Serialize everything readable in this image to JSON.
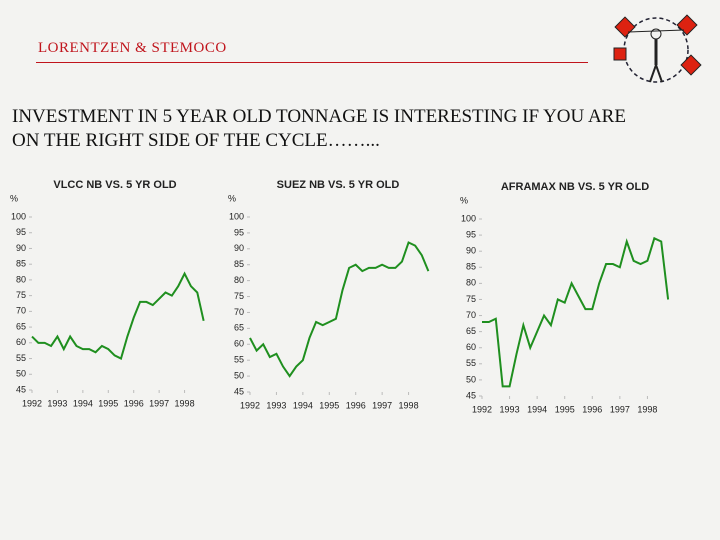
{
  "header": {
    "brand": "LORENTZEN & STEMOCO",
    "title_lines": [
      "INVESTMENT IN 5 YEAR OLD TONNAGE IS INTERESTING IF YOU ARE",
      "ON THE RIGHT SIDE OF THE CYCLE……..."
    ]
  },
  "chart_data": [
    {
      "type": "line",
      "title": "VLCC NB VS. 5 YR OLD",
      "y_label": "%",
      "color": "#1f8f1f",
      "x": [
        1992,
        1992.25,
        1992.5,
        1992.75,
        1993,
        1993.25,
        1993.5,
        1993.75,
        1994,
        1994.25,
        1994.5,
        1994.75,
        1995,
        1995.25,
        1995.5,
        1995.75,
        1996,
        1996.25,
        1996.5,
        1996.75,
        1997,
        1997.25,
        1997.5,
        1997.75,
        1998,
        1998.25,
        1998.5,
        1998.75
      ],
      "values": [
        62,
        60,
        60,
        59,
        62,
        58,
        62,
        59,
        58,
        58,
        57,
        59,
        58,
        56,
        55,
        62,
        68,
        73,
        73,
        72,
        74,
        76,
        75,
        78,
        82,
        78,
        76,
        67
      ],
      "xlim": [
        1992,
        1999
      ],
      "xticks": [
        1992,
        1993,
        1994,
        1995,
        1996,
        1997,
        1998
      ],
      "ylim": [
        45,
        100
      ],
      "yticks": [
        45,
        50,
        55,
        60,
        65,
        70,
        75,
        80,
        85,
        90,
        95,
        100
      ]
    },
    {
      "type": "line",
      "title": "SUEZ NB VS. 5 YR OLD",
      "y_label": "%",
      "color": "#1f8f1f",
      "x": [
        1992,
        1992.25,
        1992.5,
        1992.75,
        1993,
        1993.25,
        1993.5,
        1993.75,
        1994,
        1994.25,
        1994.5,
        1994.75,
        1995,
        1995.25,
        1995.5,
        1995.75,
        1996,
        1996.25,
        1996.5,
        1996.75,
        1997,
        1997.25,
        1997.5,
        1997.75,
        1998,
        1998.25,
        1998.5,
        1998.75
      ],
      "values": [
        62,
        58,
        60,
        56,
        57,
        53,
        50,
        53,
        55,
        62,
        67,
        66,
        67,
        68,
        77,
        84,
        85,
        83,
        84,
        84,
        85,
        84,
        84,
        86,
        92,
        91,
        88,
        83
      ],
      "xlim": [
        1992,
        1999
      ],
      "xticks": [
        1992,
        1993,
        1994,
        1995,
        1996,
        1997,
        1998
      ],
      "ylim": [
        45,
        100
      ],
      "yticks": [
        45,
        50,
        55,
        60,
        65,
        70,
        75,
        80,
        85,
        90,
        95,
        100
      ]
    },
    {
      "type": "line",
      "title": "AFRAMAX NB VS. 5 YR OLD",
      "y_label": "%",
      "color": "#1f8f1f",
      "x": [
        1992,
        1992.25,
        1992.5,
        1992.75,
        1993,
        1993.25,
        1993.5,
        1993.75,
        1994,
        1994.25,
        1994.5,
        1994.75,
        1995,
        1995.25,
        1995.5,
        1995.75,
        1996,
        1996.25,
        1996.5,
        1996.75,
        1997,
        1997.25,
        1997.5,
        1997.75,
        1998,
        1998.25,
        1998.5,
        1998.75
      ],
      "values": [
        68,
        68,
        69,
        48,
        48,
        58,
        67,
        60,
        65,
        70,
        67,
        75,
        74,
        80,
        76,
        72,
        72,
        80,
        86,
        86,
        85,
        93,
        87,
        86,
        87,
        94,
        93,
        75
      ],
      "xlim": [
        1992,
        1999
      ],
      "xticks": [
        1992,
        1993,
        1994,
        1995,
        1996,
        1997,
        1998
      ],
      "ylim": [
        45,
        100
      ],
      "yticks": [
        45,
        50,
        55,
        60,
        65,
        70,
        75,
        80,
        85,
        90,
        95,
        100
      ]
    }
  ]
}
